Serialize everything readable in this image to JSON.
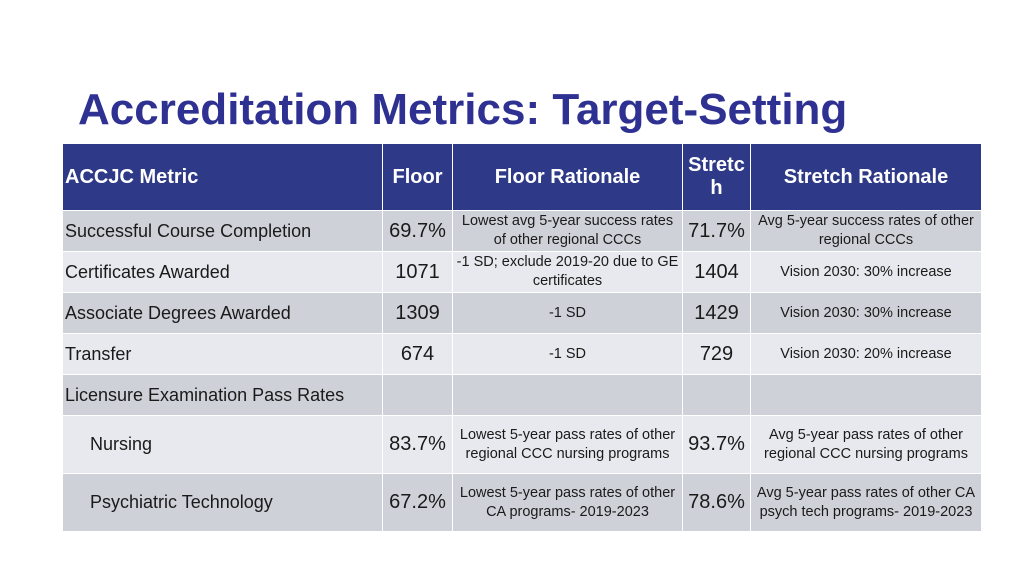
{
  "title": "Accreditation Metrics: Target-Setting",
  "table": {
    "headers": {
      "metric": "ACCJC Metric",
      "floor": "Floor",
      "floor_rationale": "Floor Rationale",
      "stretch": "Stretc h",
      "stretch_rationale": "Stretch Rationale"
    },
    "rows": [
      {
        "metric": "Successful Course Completion",
        "floor": "69.7%",
        "floor_rationale": "Lowest avg 5-year success rates of other regional CCCs",
        "stretch": "71.7%",
        "stretch_rationale": "Avg 5-year success rates of other regional CCCs"
      },
      {
        "metric": "Certificates Awarded",
        "floor": "1071",
        "floor_rationale": "-1 SD; exclude 2019-20 due to GE certificates",
        "stretch": "1404",
        "stretch_rationale": "Vision 2030: 30% increase"
      },
      {
        "metric": "Associate Degrees Awarded",
        "floor": "1309",
        "floor_rationale": "-1 SD",
        "stretch": "1429",
        "stretch_rationale": "Vision 2030: 30% increase"
      },
      {
        "metric": "Transfer",
        "floor": "674",
        "floor_rationale": "-1 SD",
        "stretch": "729",
        "stretch_rationale": "Vision 2030: 20% increase"
      },
      {
        "metric": "Licensure Examination Pass Rates",
        "floor": "",
        "floor_rationale": "",
        "stretch": "",
        "stretch_rationale": ""
      },
      {
        "metric": "Nursing",
        "floor": "83.7%",
        "floor_rationale": "Lowest 5-year pass rates of other regional CCC nursing programs",
        "stretch": "93.7%",
        "stretch_rationale": "Avg 5-year pass rates of other regional CCC nursing programs"
      },
      {
        "metric": "Psychiatric Technology",
        "floor": "67.2%",
        "floor_rationale": "Lowest 5-year pass rates of other CA programs- 2019-2023",
        "stretch": "78.6%",
        "stretch_rationale": "Avg 5-year pass rates of other CA psych tech programs- 2019-2023"
      }
    ]
  }
}
